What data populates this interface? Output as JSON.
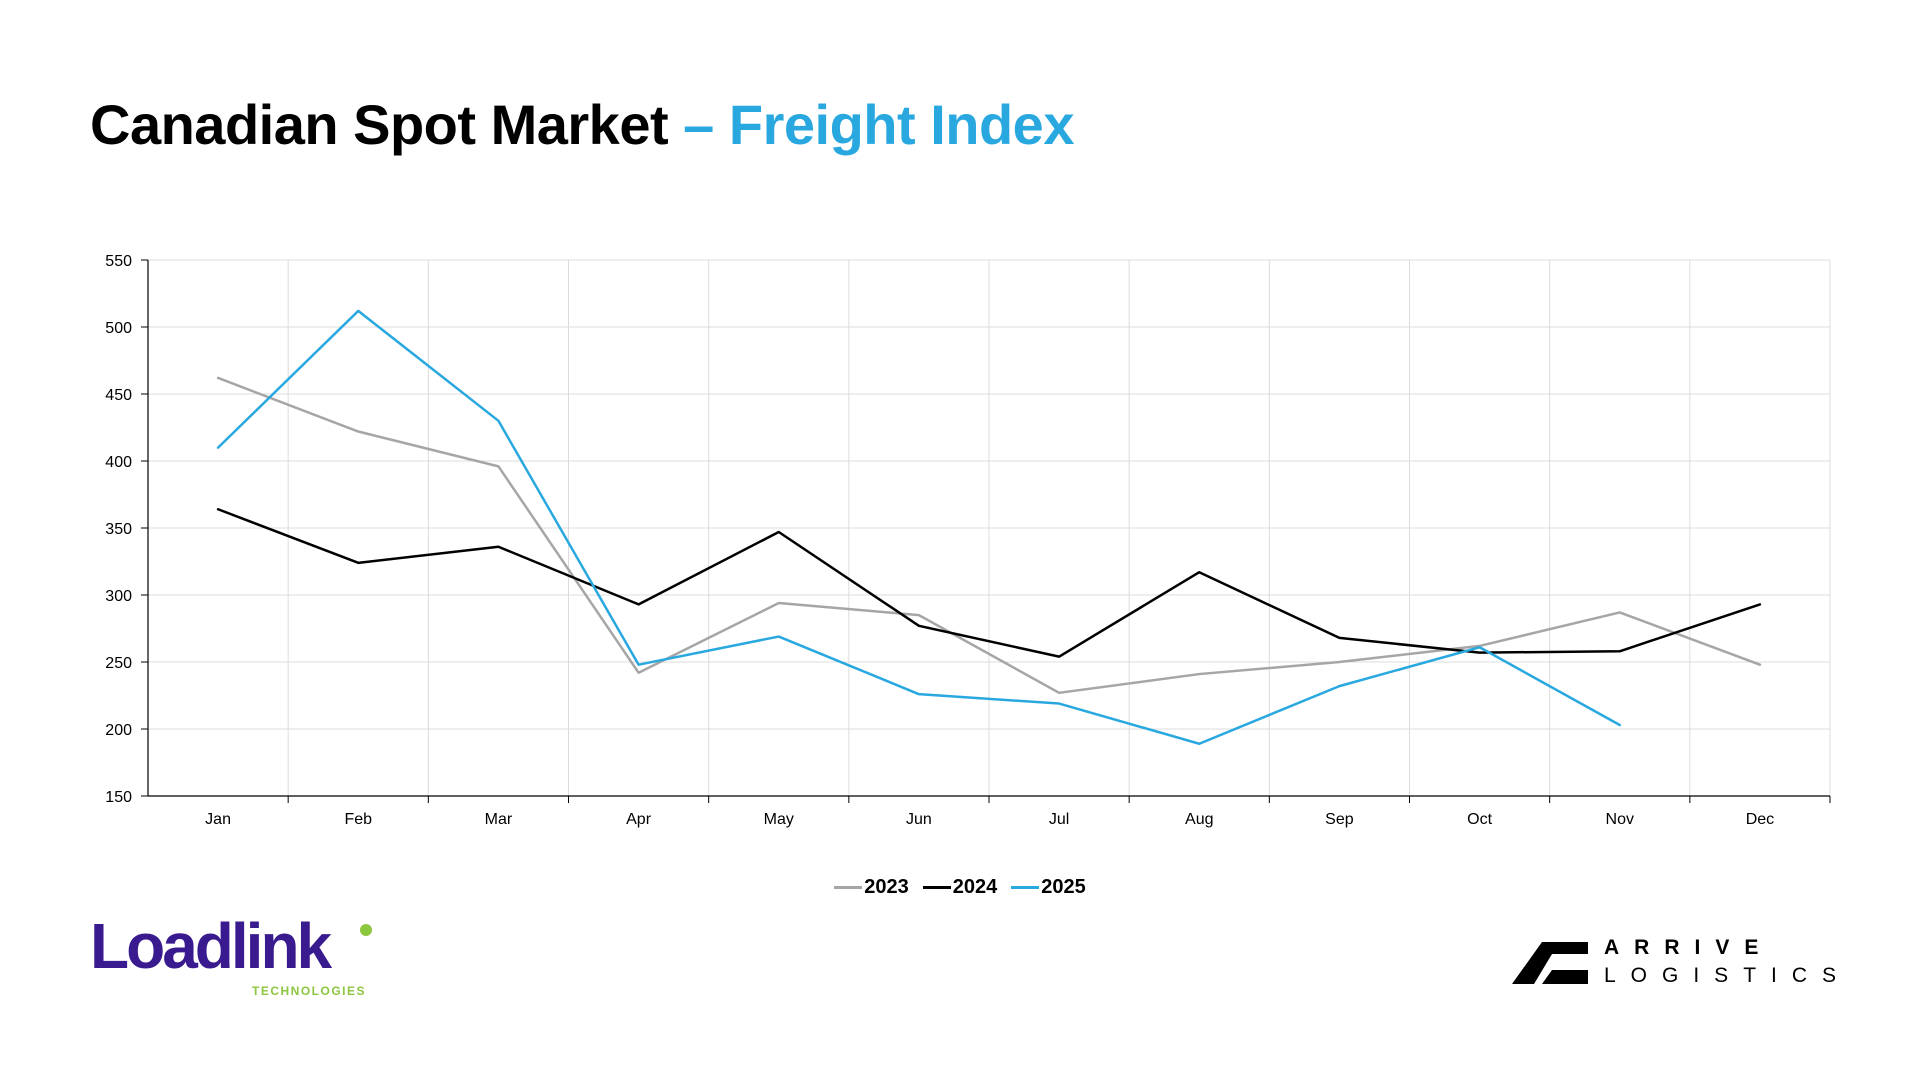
{
  "header": {
    "title_main": "Canadian Spot Market",
    "title_accent": "– Freight Index"
  },
  "chart_data": {
    "type": "line",
    "title": "Canadian Spot Market – Freight Index",
    "xlabel": "",
    "ylabel": "",
    "categories": [
      "Jan",
      "Feb",
      "Mar",
      "Apr",
      "May",
      "Jun",
      "Jul",
      "Aug",
      "Sep",
      "Oct",
      "Nov",
      "Dec"
    ],
    "ylim": [
      150,
      550
    ],
    "yticks": [
      150,
      200,
      250,
      300,
      350,
      400,
      450,
      500,
      550
    ],
    "grid": true,
    "legend_position": "bottom-center",
    "series": [
      {
        "name": "2023",
        "color": "#a6a6a6",
        "values": [
          462,
          422,
          396,
          242,
          294,
          285,
          227,
          241,
          250,
          262,
          287,
          248
        ]
      },
      {
        "name": "2024",
        "color": "#000000",
        "values": [
          364,
          324,
          336,
          293,
          347,
          277,
          254,
          317,
          268,
          257,
          258,
          293
        ]
      },
      {
        "name": "2025",
        "color": "#29a8e0",
        "values": [
          410,
          512,
          430,
          248,
          269,
          226,
          219,
          189,
          232,
          261,
          203,
          null
        ]
      }
    ]
  },
  "logos": {
    "loadlink": {
      "name": "Loadlink",
      "sub": "TECHNOLOGIES",
      "brand_color": "#3a1a8f",
      "accent_color": "#8dc63f"
    },
    "arrive": {
      "line1": "ARRIVE",
      "line2": "LOGISTICS"
    }
  }
}
